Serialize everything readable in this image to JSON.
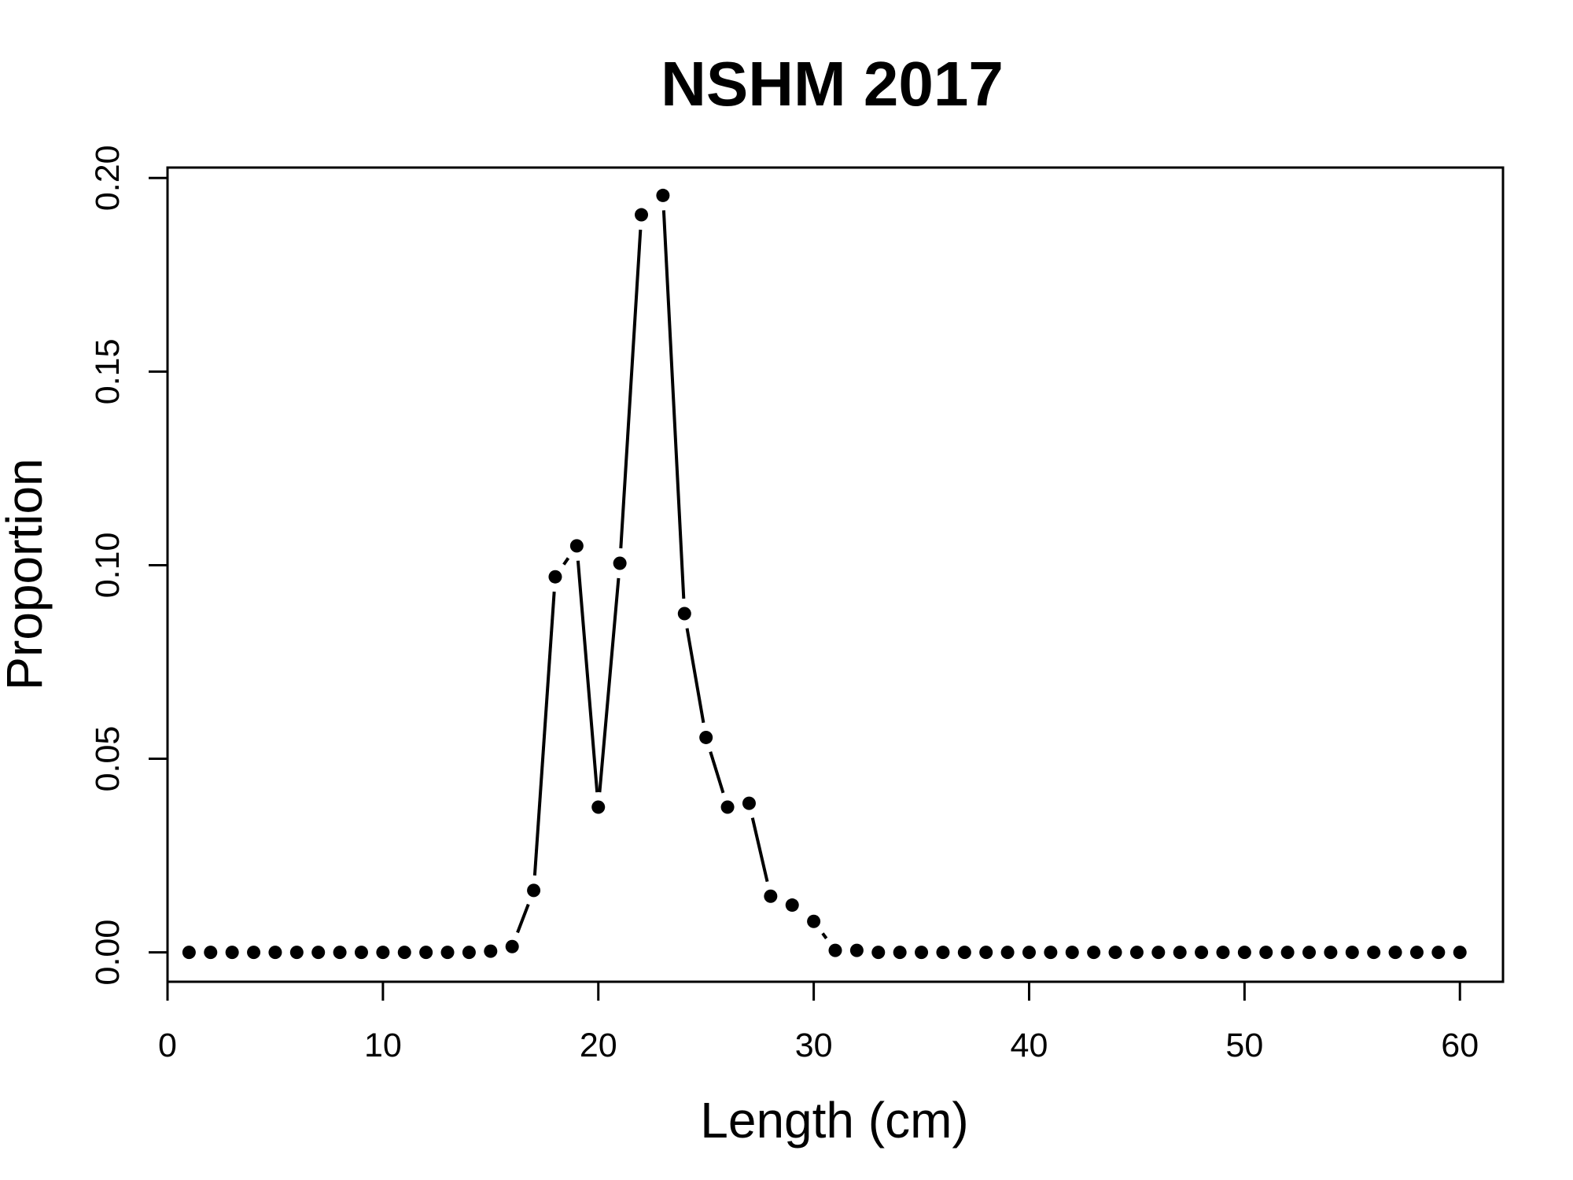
{
  "chart_data": {
    "type": "line",
    "title": "NSHM 2017",
    "xlabel": "Length (cm)",
    "ylabel": "Proportion",
    "xlim": [
      0,
      62
    ],
    "ylim": [
      -0.0076,
      0.2027
    ],
    "xticks": [
      0,
      10,
      20,
      30,
      40,
      50,
      60
    ],
    "xtick_labels": [
      "0",
      "10",
      "20",
      "30",
      "40",
      "50",
      "60"
    ],
    "yticks": [
      0.0,
      0.05,
      0.1,
      0.15,
      0.2
    ],
    "ytick_labels": [
      "0.00",
      "0.05",
      "0.10",
      "0.15",
      "0.20"
    ],
    "grid": false,
    "legend": "none",
    "line_style": "b",
    "series": [
      {
        "color": "#000000",
        "x": [
          1,
          2,
          3,
          4,
          5,
          6,
          7,
          8,
          9,
          10,
          11,
          12,
          13,
          14,
          15,
          16,
          17,
          18,
          19,
          20,
          21,
          22,
          23,
          24,
          25,
          26,
          27,
          28,
          29,
          30,
          31,
          32,
          33,
          34,
          35,
          36,
          37,
          38,
          39,
          40,
          41,
          42,
          43,
          44,
          45,
          46,
          47,
          48,
          49,
          50,
          51,
          52,
          53,
          54,
          55,
          56,
          57,
          58,
          59,
          60
        ],
        "values": [
          0,
          0,
          0,
          0,
          0,
          0,
          0,
          0,
          0,
          0,
          0,
          0,
          0,
          0,
          0.0003,
          0.0015,
          0.016,
          0.097,
          0.105,
          0.0375,
          0.1005,
          0.1905,
          0.1955,
          0.0875,
          0.0555,
          0.0375,
          0.0385,
          0.0145,
          0.0122,
          0.008,
          0.0005,
          0.0005,
          0,
          0,
          0,
          0,
          0,
          0,
          0,
          0,
          0,
          0,
          0,
          0,
          0,
          0,
          0,
          0,
          0,
          0,
          0,
          0,
          0,
          0,
          0,
          0,
          0,
          0,
          0,
          0
        ]
      }
    ]
  }
}
